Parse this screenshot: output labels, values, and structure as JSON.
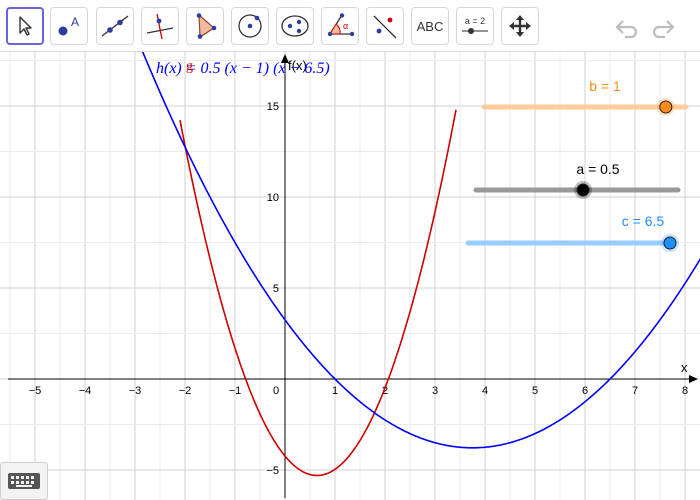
{
  "toolbar": {
    "tools": [
      {
        "name": "move-tool-icon"
      },
      {
        "name": "point-tool-icon",
        "label": "A"
      },
      {
        "name": "line-tool-icon"
      },
      {
        "name": "perpendicular-line-tool-icon"
      },
      {
        "name": "polygon-tool-icon"
      },
      {
        "name": "circle-tool-icon"
      },
      {
        "name": "conic-tool-icon"
      },
      {
        "name": "angle-tool-icon",
        "label": "α"
      },
      {
        "name": "reflect-tool-icon"
      },
      {
        "name": "text-tool-icon",
        "label": "ABC"
      },
      {
        "name": "slider-tool-icon",
        "label": "a = 2"
      },
      {
        "name": "move-graphics-view-tool-icon"
      }
    ],
    "undo_icon": "undo-icon",
    "redo_icon": "redo-icon"
  },
  "graph": {
    "x_axis_label": "x",
    "y_axis_label": "f(x)",
    "x_ticks": [
      "−5",
      "−4",
      "−3",
      "−2",
      "−1",
      "0",
      "1",
      "2",
      "3",
      "4",
      "5",
      "6",
      "7",
      "8"
    ],
    "y_ticks": [
      "−5",
      "5",
      "10",
      "15"
    ],
    "x_range": [
      -5.5,
      8.3
    ],
    "y_range": [
      -6.2,
      16.5
    ],
    "grid": true,
    "colors": {
      "h": "#0000ff",
      "g": "#cc0000",
      "grid": "#d0d0d0",
      "axis": "#000000"
    }
  },
  "functions": [
    {
      "name": "h",
      "formula": "h(x) = 0.5 (x − 1) (x − 6.5)",
      "color": "#0000ff"
    },
    {
      "name": "g",
      "label": "g",
      "color": "#cc0000"
    }
  ],
  "sliders": [
    {
      "name": "b",
      "label": "b = 1",
      "value": 1,
      "fraction": 0.9,
      "color": "#ff8c1a",
      "track": "#ffcc99"
    },
    {
      "name": "a",
      "label": "a = 0.5",
      "value": 0.5,
      "fraction": 0.53,
      "color": "#000000",
      "track": "#999999"
    },
    {
      "name": "c",
      "label": "c = 6.5",
      "value": 6.5,
      "fraction": 1.0,
      "color": "#1f8fff",
      "track": "#99ccff"
    }
  ],
  "keyboard_icon": "keyboard-icon"
}
